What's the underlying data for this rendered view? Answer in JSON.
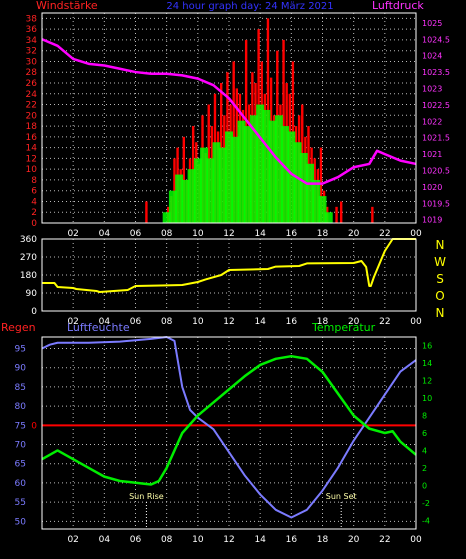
{
  "colors": {
    "background": "#000000",
    "frame": "#ffffff",
    "grid": "#bbbbbb",
    "wind_gust": "#ff0000",
    "wind_avg": "#00ff00",
    "pressure": "#ff00ff",
    "direction": "#ffff00",
    "humidity": "#7b7bff",
    "temperature": "#00ee00",
    "rain": "#ff0000",
    "title": "#3333ff",
    "wind_label": "#ff2222",
    "pressure_label": "#ff33ff",
    "compass_label": "#ffff00",
    "sun_label": "#ffffaa"
  },
  "chart_data": [
    {
      "type": "bar",
      "title": "24 hour graph day:  24 März 2021",
      "left_axis_label": "Windstärke",
      "right_axis_label": "Luftdruck",
      "x_tick_labels": [
        "02",
        "04",
        "06",
        "08",
        "10",
        "12",
        "14",
        "16",
        "18",
        "20",
        "22",
        "00"
      ],
      "y_left_ticks": [
        0,
        2,
        4,
        6,
        8,
        10,
        12,
        14,
        16,
        18,
        20,
        22,
        24,
        26,
        28,
        30,
        32,
        34,
        36,
        38
      ],
      "y_left_range": [
        0,
        39
      ],
      "y_right_ticks": [
        "1019",
        "1019.5",
        "1020",
        "1020.5",
        "1021",
        "1021.5",
        "1022",
        "1022.5",
        "1023",
        "1023.5",
        "1024",
        "1024.5",
        "1025"
      ],
      "y_right_range": [
        1018.9,
        1025.3
      ],
      "grid": true,
      "series": [
        {
          "name": "gust",
          "x_hours": [
            6.7,
            8.1,
            8.3,
            8.5,
            8.7,
            8.9,
            9.1,
            9.3,
            9.5,
            9.7,
            9.9,
            10.1,
            10.3,
            10.5,
            10.7,
            10.9,
            11.1,
            11.3,
            11.5,
            11.7,
            11.9,
            12.1,
            12.3,
            12.5,
            12.7,
            12.9,
            13.1,
            13.3,
            13.5,
            13.7,
            13.9,
            14.1,
            14.3,
            14.5,
            14.7,
            14.9,
            15.1,
            15.3,
            15.5,
            15.7,
            15.9,
            16.1,
            16.3,
            16.5,
            16.7,
            16.9,
            17.1,
            17.3,
            17.5,
            17.7,
            17.9,
            18.1,
            18.3,
            18.9,
            19.2,
            21.2
          ],
          "values": [
            4,
            3,
            5,
            12,
            14,
            10,
            16,
            8,
            12,
            18,
            15,
            11,
            20,
            13,
            22,
            18,
            24,
            17,
            26,
            20,
            28,
            22,
            30,
            25,
            24,
            21,
            34,
            22,
            28,
            26,
            36,
            30,
            24,
            38,
            27,
            20,
            32,
            22,
            34,
            26,
            24,
            30,
            18,
            20,
            22,
            16,
            18,
            14,
            12,
            10,
            14,
            6,
            3,
            3,
            4,
            3
          ]
        },
        {
          "name": "average",
          "x_hours": [
            8.0,
            8.4,
            8.8,
            9.2,
            9.6,
            10.0,
            10.4,
            10.8,
            11.2,
            11.6,
            12.0,
            12.4,
            12.8,
            13.2,
            13.6,
            14.0,
            14.4,
            14.8,
            15.2,
            15.6,
            16.0,
            16.4,
            16.8,
            17.2,
            17.6,
            18.0,
            18.4
          ],
          "values": [
            2,
            6,
            9,
            8,
            10,
            12,
            14,
            12,
            15,
            14,
            17,
            16,
            19,
            18,
            20,
            22,
            21,
            19,
            20,
            18,
            17,
            15,
            13,
            11,
            8,
            5,
            2
          ]
        },
        {
          "name": "pressure",
          "x_hours": [
            0,
            1,
            2,
            3,
            4,
            5,
            6,
            7,
            8,
            9,
            10,
            11,
            12,
            13,
            14,
            15,
            16,
            17,
            18,
            19,
            20,
            21,
            21.5,
            22,
            23,
            24
          ],
          "values": [
            1024.5,
            1024.3,
            1023.9,
            1023.75,
            1023.7,
            1023.6,
            1023.5,
            1023.45,
            1023.45,
            1023.4,
            1023.3,
            1023.1,
            1022.7,
            1022.1,
            1021.5,
            1020.9,
            1020.4,
            1020.1,
            1020.1,
            1020.3,
            1020.6,
            1020.7,
            1021.1,
            1021.0,
            1020.8,
            1020.7
          ]
        }
      ]
    },
    {
      "type": "line",
      "x_tick_labels": [
        "02",
        "04",
        "06",
        "08",
        "10",
        "12",
        "14",
        "16",
        "18",
        "20",
        "22",
        "00"
      ],
      "y_left_ticks": [
        0,
        90,
        180,
        270,
        360
      ],
      "y_range": [
        0,
        360
      ],
      "compass_labels": [
        "N",
        "W",
        "S",
        "O",
        "N"
      ],
      "grid": true,
      "series": [
        {
          "name": "wind direction",
          "x_hours": [
            0,
            0.8,
            1.0,
            2.0,
            2.2,
            3.5,
            3.7,
            5.5,
            6.0,
            8.0,
            9.0,
            10.0,
            10.5,
            11.5,
            12.0,
            14.5,
            15.0,
            16.5,
            17.0,
            20.0,
            20.5,
            20.8,
            21.0,
            21.1,
            21.3,
            22.0,
            22.5,
            24
          ],
          "values": [
            140,
            140,
            120,
            115,
            110,
            100,
            95,
            105,
            125,
            128,
            130,
            145,
            158,
            180,
            205,
            210,
            222,
            225,
            238,
            240,
            250,
            220,
            125,
            125,
            170,
            300,
            365,
            365
          ]
        }
      ]
    },
    {
      "type": "line",
      "left_axis_label": "Regen",
      "humidity_label": "Luftfeuchte",
      "temperature_label": "Temperatur",
      "x_tick_labels": [
        "02",
        "04",
        "06",
        "08",
        "10",
        "12",
        "14",
        "16",
        "18",
        "20",
        "22",
        "00"
      ],
      "y_left_ticks": [
        50,
        55,
        60,
        65,
        70,
        75,
        80,
        85,
        90,
        95
      ],
      "y_left_range": [
        48,
        98
      ],
      "y_right_ticks": [
        -4,
        -2,
        0,
        2,
        4,
        6,
        8,
        10,
        12,
        14,
        16
      ],
      "y_right_range": [
        -5,
        17
      ],
      "rain_axis_label": "0",
      "rain_value": 0,
      "grid": true,
      "annotations": [
        {
          "label": "Sun Rise",
          "x_hour": 6.7
        },
        {
          "label": "Sun Set",
          "x_hour": 19.2
        }
      ],
      "series": [
        {
          "name": "humidity",
          "x_hours": [
            0,
            0.5,
            1,
            3,
            5,
            7,
            8,
            8.5,
            9,
            9.5,
            10,
            11,
            12,
            13,
            14,
            15,
            16,
            17,
            18,
            19,
            20,
            21,
            22,
            23,
            24
          ],
          "values": [
            95,
            96,
            96.5,
            96.5,
            96.8,
            97.5,
            98,
            97,
            85,
            79,
            77,
            74,
            68,
            62,
            57,
            53,
            51,
            53,
            58,
            64,
            71,
            77,
            83,
            89,
            92
          ]
        },
        {
          "name": "temperature",
          "x_hours": [
            0,
            0.5,
            1,
            2,
            3,
            4,
            5,
            6,
            6.5,
            7,
            7.5,
            8,
            8.5,
            9,
            10,
            11,
            12,
            13,
            14,
            15,
            16,
            17,
            18,
            19,
            20,
            21,
            22,
            22.5,
            23,
            24
          ],
          "values": [
            3.0,
            3.5,
            4.0,
            3.0,
            2.0,
            1.0,
            0.5,
            0.3,
            0.2,
            0.1,
            0.5,
            2,
            4,
            6,
            8,
            9.5,
            11,
            12.5,
            13.8,
            14.5,
            14.8,
            14.5,
            13,
            10.5,
            8,
            6.5,
            6,
            6.2,
            5,
            3.5
          ]
        }
      ]
    }
  ]
}
